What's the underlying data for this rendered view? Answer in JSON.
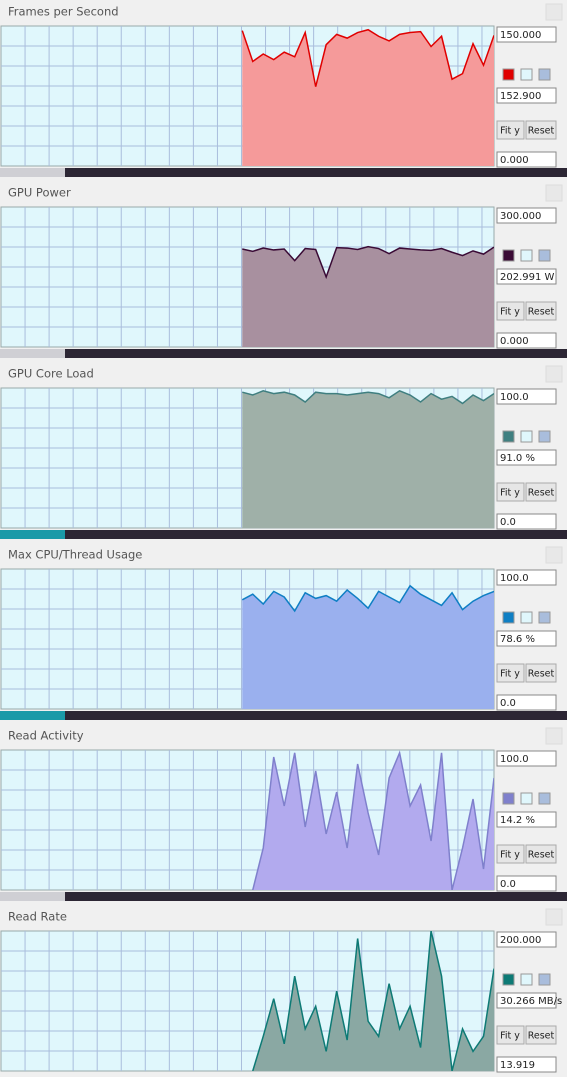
{
  "buttons": {
    "fit": "Fit y",
    "reset": "Reset"
  },
  "panels": [
    {
      "title": "Frames per Second",
      "max": {
        "value": 150,
        "label": "150.000"
      },
      "min": {
        "value": 0,
        "label": "0.000"
      },
      "current": {
        "value": 152.9,
        "label": "152.900"
      },
      "color": "#e00000",
      "fill": "#f59a9a",
      "values": [
        null,
        null,
        null,
        null,
        null,
        null,
        null,
        null,
        null,
        null,
        null,
        null,
        null,
        null,
        null,
        null,
        null,
        null,
        null,
        null,
        null,
        null,
        null,
        145,
        112,
        120,
        114,
        122,
        117,
        143,
        85,
        130,
        141,
        137,
        143,
        146,
        139,
        134,
        141,
        143,
        144,
        128,
        139,
        93,
        99,
        131,
        108,
        140
      ]
    },
    {
      "title": "GPU Power",
      "max": {
        "value": 300,
        "label": "300.000"
      },
      "min": {
        "value": 0,
        "label": "0.000"
      },
      "current": {
        "value": 202.991,
        "label": "202.991 W"
      },
      "color": "#3a0a35",
      "fill": "#a8909f",
      "values": [
        null,
        null,
        null,
        null,
        null,
        null,
        null,
        null,
        null,
        null,
        null,
        null,
        null,
        null,
        null,
        null,
        null,
        null,
        null,
        null,
        null,
        null,
        null,
        210,
        205,
        212,
        208,
        210,
        185,
        211,
        209,
        150,
        213,
        212,
        209,
        215,
        211,
        200,
        212,
        210,
        208,
        207,
        211,
        203,
        196,
        206,
        199,
        214
      ]
    },
    {
      "title": "GPU Core Load",
      "max": {
        "value": 100,
        "label": "100.0"
      },
      "min": {
        "value": 0,
        "label": "0.0"
      },
      "current": {
        "value": 91,
        "label": "91.0 %"
      },
      "color": "#3f7f80",
      "fill": "#9fb0a8",
      "values": [
        null,
        null,
        null,
        null,
        null,
        null,
        null,
        null,
        null,
        null,
        null,
        null,
        null,
        null,
        null,
        null,
        null,
        null,
        null,
        null,
        null,
        null,
        null,
        97,
        95,
        98,
        96,
        97,
        95,
        90,
        97,
        96,
        96,
        95,
        96,
        97,
        96,
        93,
        98,
        95,
        90,
        96,
        92,
        94,
        89,
        95,
        91,
        96
      ]
    },
    {
      "title": "Max CPU/Thread Usage",
      "max": {
        "value": 100,
        "label": "100.0"
      },
      "min": {
        "value": 0,
        "label": "0.0"
      },
      "current": {
        "value": 78.6,
        "label": "78.6 %"
      },
      "color": "#0f7fc4",
      "fill": "#9ab0ee",
      "values": [
        null,
        null,
        null,
        null,
        null,
        null,
        null,
        null,
        null,
        null,
        null,
        null,
        null,
        null,
        null,
        null,
        null,
        null,
        null,
        null,
        null,
        null,
        null,
        78,
        82,
        75,
        84,
        80,
        70,
        83,
        79,
        81,
        77,
        85,
        79,
        72,
        84,
        80,
        76,
        88,
        82,
        78,
        74,
        83,
        71,
        77,
        81,
        84
      ]
    },
    {
      "title": "Read Activity",
      "max": {
        "value": 100,
        "label": "100.0"
      },
      "min": {
        "value": 0,
        "label": "0.0"
      },
      "current": {
        "value": 14.2,
        "label": "14.2 %"
      },
      "color": "#7f80cc",
      "fill": "#b2aaee",
      "values": [
        null,
        null,
        null,
        null,
        null,
        null,
        null,
        null,
        null,
        null,
        null,
        null,
        null,
        null,
        null,
        null,
        null,
        null,
        null,
        null,
        null,
        null,
        null,
        null,
        0,
        30,
        95,
        60,
        98,
        45,
        85,
        40,
        70,
        30,
        90,
        55,
        25,
        80,
        98,
        60,
        75,
        35,
        98,
        0,
        30,
        65,
        15,
        80
      ]
    },
    {
      "title": "Read Rate",
      "max": {
        "value": 200,
        "label": "200.000"
      },
      "min": 13.919,
      "current": {
        "value": 30.266,
        "label": "30.266 MB/s"
      },
      "color": "#0d7a75",
      "fill": "#8aa8a3",
      "values": [
        null,
        null,
        null,
        null,
        null,
        null,
        null,
        null,
        null,
        null,
        null,
        null,
        null,
        null,
        null,
        null,
        null,
        null,
        null,
        null,
        null,
        null,
        null,
        null,
        13.919,
        60,
        110,
        50,
        140,
        70,
        100,
        40,
        120,
        55,
        190,
        80,
        60,
        130,
        70,
        100,
        45,
        200,
        140,
        14,
        70,
        40,
        60,
        150
      ]
    }
  ]
}
